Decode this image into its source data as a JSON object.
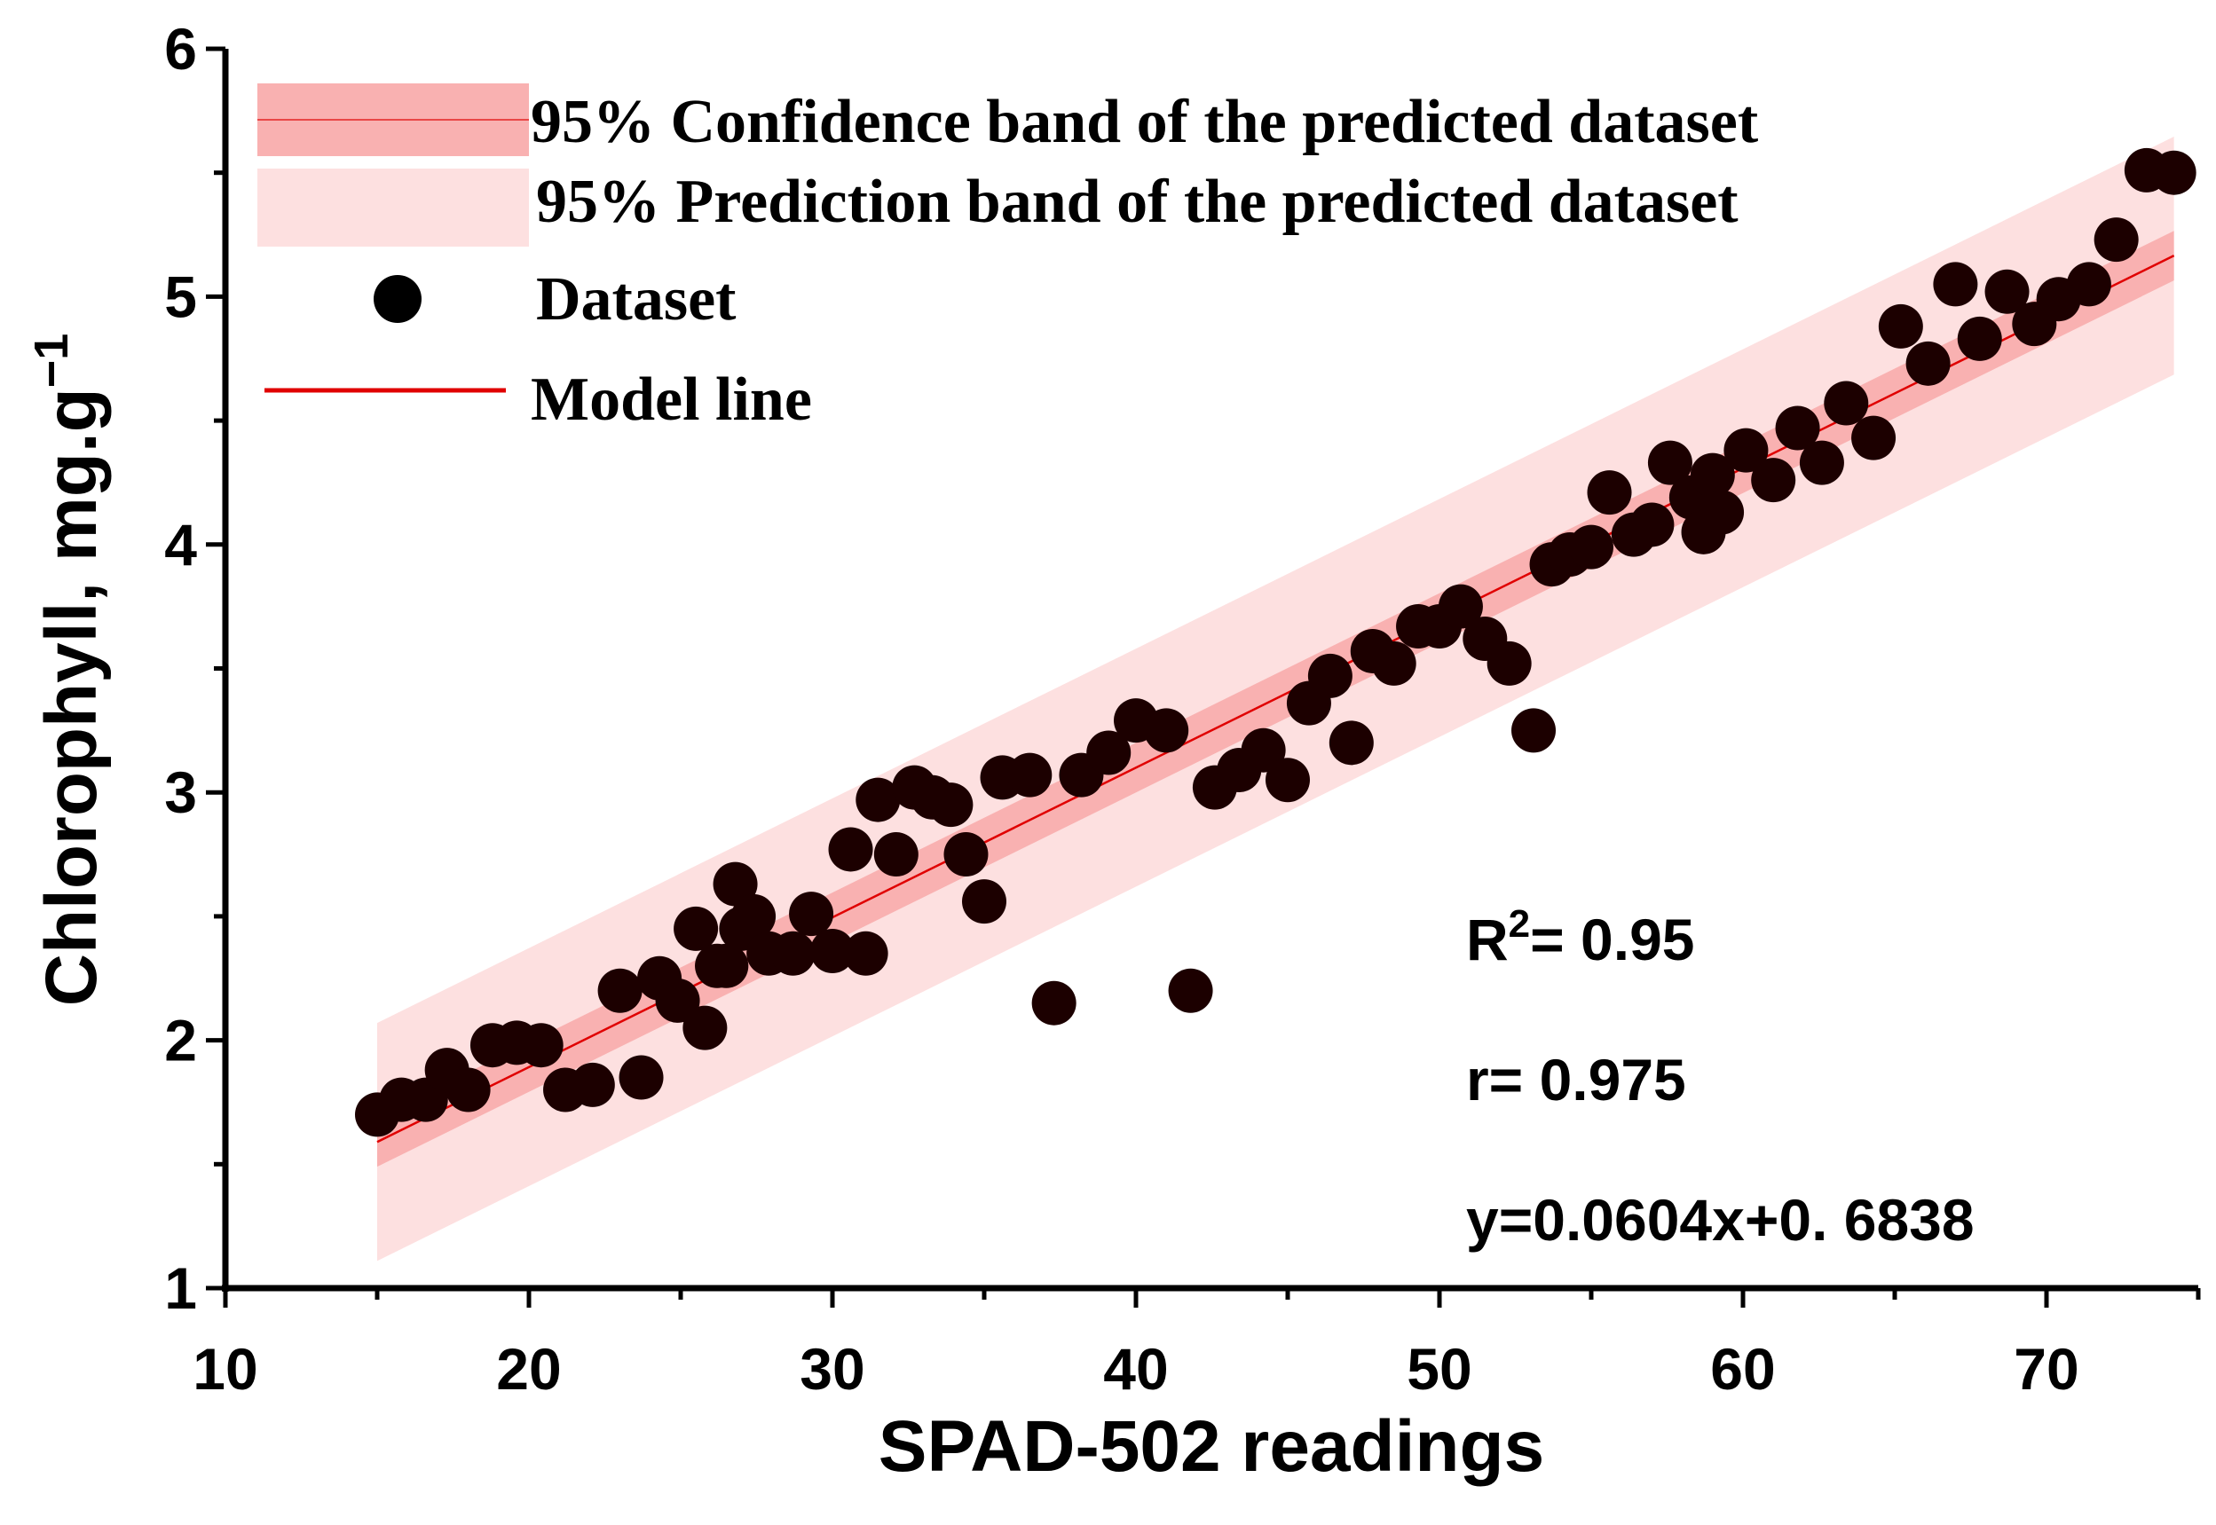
{
  "chart_data": {
    "type": "scatter",
    "title": "",
    "xlabel": "SPAD-502 readings",
    "ylabel": "Chlorophyll, mg.g",
    "ylabel_sup": "−1",
    "xlim": [
      10,
      75
    ],
    "ylim": [
      1,
      6
    ],
    "xticks": [
      10,
      20,
      30,
      40,
      50,
      60,
      70
    ],
    "yticks": [
      1,
      2,
      3,
      4,
      5,
      6
    ],
    "grid": false,
    "legend_position": "top-left",
    "legend": [
      {
        "label": "95% Confidence band of the predicted dataset",
        "kind": "confidence-band"
      },
      {
        "label": "95% Prediction band of the predicted dataset",
        "kind": "prediction-band"
      },
      {
        "label": "Dataset",
        "kind": "marker"
      },
      {
        "label": "Model line",
        "kind": "line"
      }
    ],
    "model": {
      "slope": 0.0604,
      "intercept": 0.6838,
      "x_range": [
        15,
        74.2
      ]
    },
    "confidence_half_width": 0.1,
    "prediction_half_width": 0.48,
    "colors": {
      "points": "#1c0000",
      "model_line": "#e00000",
      "confidence_band": "#f9b1b1",
      "prediction_band": "#fde0e0"
    },
    "annotations": {
      "r2_label": "R",
      "r2_sup": "2",
      "r2_value": "= 0.95",
      "r": "r= 0.975",
      "equation": "y=0.0604x+0. 6838"
    },
    "points": [
      [
        15.0,
        1.7
      ],
      [
        15.8,
        1.76
      ],
      [
        16.6,
        1.76
      ],
      [
        17.3,
        1.88
      ],
      [
        18.0,
        1.8
      ],
      [
        18.8,
        1.98
      ],
      [
        19.6,
        1.99
      ],
      [
        20.4,
        1.98
      ],
      [
        21.2,
        1.8
      ],
      [
        22.1,
        1.82
      ],
      [
        23.0,
        2.2
      ],
      [
        23.7,
        1.85
      ],
      [
        24.3,
        2.25
      ],
      [
        24.9,
        2.16
      ],
      [
        25.5,
        2.45
      ],
      [
        25.8,
        2.05
      ],
      [
        26.2,
        2.3
      ],
      [
        26.5,
        2.3
      ],
      [
        26.8,
        2.63
      ],
      [
        27.0,
        2.45
      ],
      [
        27.4,
        2.5
      ],
      [
        27.9,
        2.35
      ],
      [
        28.7,
        2.35
      ],
      [
        29.3,
        2.51
      ],
      [
        30.0,
        2.36
      ],
      [
        30.6,
        2.77
      ],
      [
        31.1,
        2.35
      ],
      [
        31.5,
        2.97
      ],
      [
        32.1,
        2.75
      ],
      [
        32.7,
        3.02
      ],
      [
        33.3,
        2.98
      ],
      [
        33.9,
        2.95
      ],
      [
        34.4,
        2.75
      ],
      [
        35.0,
        2.56
      ],
      [
        35.6,
        3.06
      ],
      [
        36.5,
        3.07
      ],
      [
        37.3,
        2.15
      ],
      [
        38.2,
        3.07
      ],
      [
        39.1,
        3.16
      ],
      [
        40.0,
        3.29
      ],
      [
        41.0,
        3.25
      ],
      [
        41.8,
        2.2
      ],
      [
        42.6,
        3.02
      ],
      [
        43.4,
        3.09
      ],
      [
        44.2,
        3.17
      ],
      [
        45.0,
        3.05
      ],
      [
        45.7,
        3.36
      ],
      [
        46.4,
        3.47
      ],
      [
        47.1,
        3.2
      ],
      [
        47.8,
        3.57
      ],
      [
        48.5,
        3.52
      ],
      [
        49.3,
        3.67
      ],
      [
        50.0,
        3.67
      ],
      [
        50.7,
        3.75
      ],
      [
        51.5,
        3.62
      ],
      [
        52.3,
        3.52
      ],
      [
        53.1,
        3.25
      ],
      [
        53.7,
        3.92
      ],
      [
        54.3,
        3.96
      ],
      [
        55.0,
        3.99
      ],
      [
        55.6,
        4.21
      ],
      [
        56.4,
        4.04
      ],
      [
        57.0,
        4.08
      ],
      [
        57.6,
        4.33
      ],
      [
        58.3,
        4.19
      ],
      [
        58.7,
        4.05
      ],
      [
        59.0,
        4.28
      ],
      [
        59.3,
        4.13
      ],
      [
        60.1,
        4.38
      ],
      [
        61.0,
        4.26
      ],
      [
        61.8,
        4.47
      ],
      [
        62.6,
        4.33
      ],
      [
        63.4,
        4.57
      ],
      [
        64.3,
        4.43
      ],
      [
        65.2,
        4.88
      ],
      [
        66.1,
        4.73
      ],
      [
        67.0,
        5.05
      ],
      [
        67.8,
        4.83
      ],
      [
        68.7,
        5.02
      ],
      [
        69.6,
        4.89
      ],
      [
        70.4,
        4.99
      ],
      [
        71.4,
        5.05
      ],
      [
        72.3,
        5.23
      ],
      [
        73.3,
        5.51
      ],
      [
        74.2,
        5.5
      ]
    ]
  }
}
